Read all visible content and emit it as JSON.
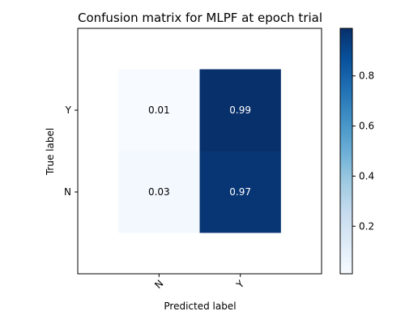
{
  "chart_data": {
    "type": "heatmap",
    "title": "Confusion matrix for MLPF at epoch trial",
    "xlabel": "Predicted label",
    "ylabel": "True label",
    "x_categories": [
      "N",
      "Y"
    ],
    "y_categories": [
      "Y",
      "N"
    ],
    "values": [
      [
        0.01,
        0.99
      ],
      [
        0.03,
        0.97
      ]
    ],
    "cell_labels": [
      [
        "0.01",
        "0.99"
      ],
      [
        "0.03",
        "0.97"
      ]
    ],
    "colormap": "Blues",
    "colorbar": {
      "range": [
        0.01,
        0.99
      ],
      "ticks": [
        0.2,
        0.4,
        0.6,
        0.8
      ],
      "tick_labels": [
        "0.2",
        "0.4",
        "0.6",
        "0.8"
      ]
    },
    "x_tick_rotation_deg": 45
  }
}
